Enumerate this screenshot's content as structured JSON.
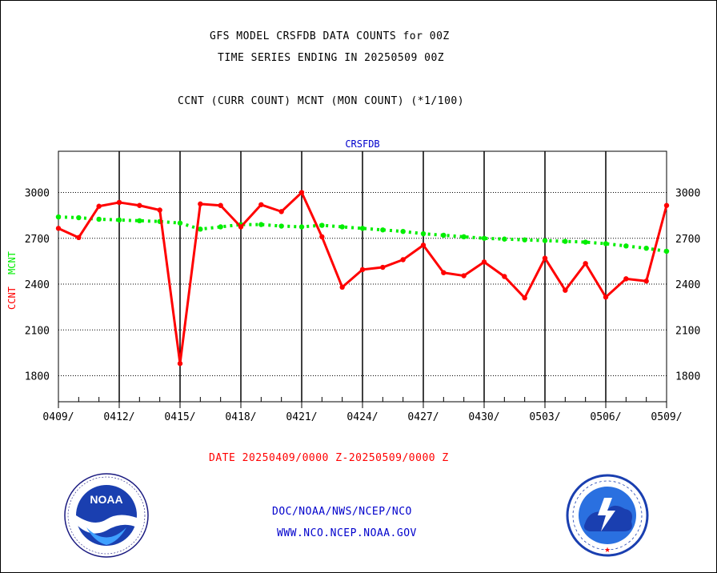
{
  "header": {
    "line1": "GFS MODEL CRSFDB DATA COUNTS for 00Z",
    "line2": "TIME SERIES ENDING IN 20250509 00Z",
    "line3": "CCNT (CURR COUNT) MCNT (MON COUNT) (*1/100)"
  },
  "footer": {
    "date_range": "DATE 20250409/0000 Z-20250509/0000 Z",
    "org_path": "DOC/NOAA/NWS/NCEP/NCO",
    "website": "WWW.NCO.NCEP.NOAA.GOV"
  },
  "logos": {
    "left": "NOAA",
    "right": "NATIONAL WEATHER SERVICE"
  },
  "colors": {
    "ccnt": "#ff0000",
    "mcnt": "#00ee00",
    "title": "#0000cc",
    "axis": "#000000"
  },
  "chart_data": {
    "type": "line",
    "title": "CRSFDB",
    "ylabel_ccnt": "CCNT",
    "ylabel_mcnt": "MCNT",
    "ylim": [
      1630,
      3270
    ],
    "yticks": [
      1800,
      2100,
      2400,
      2700,
      3000
    ],
    "xticks": [
      "0409/",
      "0412/",
      "0415/",
      "0418/",
      "0421/",
      "0424/",
      "0427/",
      "0430/",
      "0503/",
      "0506/",
      "0509/"
    ],
    "x": [
      "0409",
      "0410",
      "0411",
      "0412",
      "0413",
      "0414",
      "0415",
      "0416",
      "0417",
      "0418",
      "0419",
      "0420",
      "0421",
      "0422",
      "0423",
      "0424",
      "0425",
      "0426",
      "0427",
      "0428",
      "0429",
      "0430",
      "0501",
      "0502",
      "0503",
      "0504",
      "0505",
      "0506",
      "0507",
      "0508",
      "0509"
    ],
    "grid": true,
    "series": [
      {
        "name": "CCNT",
        "values": [
          2765,
          2705,
          2910,
          2935,
          2915,
          2885,
          1880,
          2925,
          2915,
          2775,
          2920,
          2875,
          3000,
          2710,
          2380,
          2495,
          2510,
          2560,
          2655,
          2475,
          2455,
          2545,
          2450,
          2310,
          2570,
          2360,
          2535,
          2315,
          2435,
          2420,
          2915
        ]
      },
      {
        "name": "MCNT",
        "values": [
          2840,
          2835,
          2825,
          2820,
          2815,
          2810,
          2800,
          2760,
          2775,
          2790,
          2790,
          2780,
          2775,
          2785,
          2775,
          2765,
          2755,
          2745,
          2730,
          2720,
          2710,
          2700,
          2695,
          2690,
          2685,
          2680,
          2675,
          2665,
          2650,
          2635,
          2615
        ]
      }
    ]
  }
}
